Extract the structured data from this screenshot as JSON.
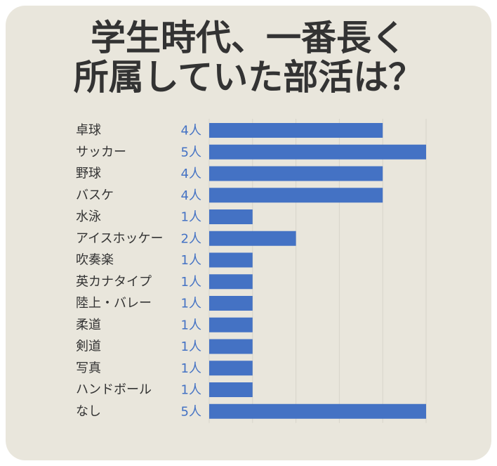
{
  "chart_data": {
    "type": "bar",
    "orientation": "horizontal",
    "title_lines": [
      "学生時代、一番長く",
      "所属していた部活は？"
    ],
    "categories": [
      "卓球",
      "サッカー",
      "野球",
      "バスケ",
      "水泳",
      "アイスホッケー",
      "吹奏楽",
      "英カナタイプ",
      "陸上・バレー",
      "柔道",
      "剣道",
      "写真",
      "ハンドボール",
      "なし"
    ],
    "values": [
      4,
      5,
      4,
      4,
      1,
      2,
      1,
      1,
      1,
      1,
      1,
      1,
      1,
      5
    ],
    "value_unit": "人",
    "xlim": [
      0,
      5
    ],
    "grid": true
  },
  "colors": {
    "panel": "#e9e6dc",
    "title": "#333333",
    "category_label": "#333333",
    "bar": "#4472c4",
    "value_label": "#4472c4"
  }
}
